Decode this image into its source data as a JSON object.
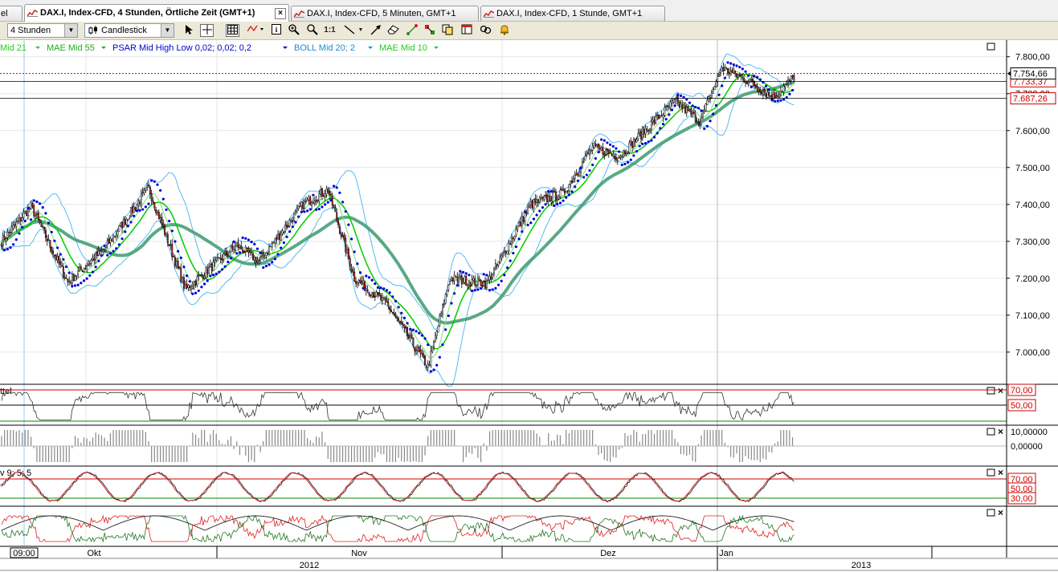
{
  "tabs": [
    {
      "label": "el",
      "active": false
    },
    {
      "label": "DAX.I, Index-CFD, 4 Stunden, Örtliche Zeit (GMT+1)",
      "active": true
    },
    {
      "label": "DAX.I, Index-CFD, 5 Minuten, GMT+1",
      "active": false
    },
    {
      "label": "DAX.I, Index-CFD, 1 Stunde, GMT+1",
      "active": false
    }
  ],
  "toolbar": {
    "interval": "4 Stunden",
    "chart_type": "Candlestick",
    "tools": [
      "cursor-arrow-icon",
      "crosshair-icon",
      "grid-icon",
      "indicator-icon",
      "info-icon",
      "zoom-pan-icon",
      "zoom-icon",
      "zoom-1to1-label",
      "line-tool-icon",
      "arrow-tool-icon",
      "eraser-icon",
      "fibonacci-icon",
      "pattern-icon",
      "copy-icon",
      "link-icon",
      "alarm-icon"
    ],
    "zoom_1to1": "1:1"
  },
  "indicators_legend": [
    {
      "text": "Mid  21",
      "color": "#22cc22"
    },
    {
      "text": "MAE Mid  55",
      "color": "#22aa22"
    },
    {
      "text": "PSAR  Mid High Low  0,02; 0,02; 0,2",
      "color": "#0000cc"
    },
    {
      "text": "BOLL Mid  20; 2",
      "color": "#2288cc"
    },
    {
      "text": "MAE Mid  10",
      "color": "#22cc22"
    }
  ],
  "price_labels": {
    "last": "7.754,66",
    "level2": "7.733,37",
    "level3": "7.687,26"
  },
  "sub_panels": [
    {
      "name": "rsi",
      "label": "ttel",
      "levels": [
        "70,00",
        "50,00"
      ]
    },
    {
      "name": "macd-histogram",
      "label": "",
      "levels": [
        "10,00000",
        "0,00000"
      ]
    },
    {
      "name": "stochastic",
      "label": "v  9; 5; 5",
      "levels": [
        "70,00",
        "50,00",
        "30,00"
      ]
    },
    {
      "name": "dmi",
      "label": "",
      "levels": []
    }
  ],
  "time_axis": {
    "top_labels": [
      "09:00",
      "Okt",
      "Nov",
      "Dez",
      "Jan"
    ],
    "bottom_labels": [
      "2012",
      "2013"
    ]
  },
  "colors": {
    "candle_up": "#ffffff",
    "candle_down": "#cc2222",
    "psar": "#0000dd",
    "boll": "#55bbee",
    "mae10": "#00cc00",
    "mae55": "#3c9a6e",
    "price_line": "#cc0000"
  },
  "chart_data": {
    "type": "candlestick",
    "title": "DAX.I, Index-CFD, 4 Stunden, Örtliche Zeit (GMT+1)",
    "y_ticks": [
      "7.000,00",
      "7.100,00",
      "7.200,00",
      "7.300,00",
      "7.400,00",
      "7.500,00",
      "7.600,00",
      "7.700,00",
      "7.800,00"
    ],
    "y_tick_values": [
      7000,
      7100,
      7200,
      7300,
      7400,
      7500,
      7600,
      7700,
      7800
    ],
    "ylim": [
      6915,
      7845
    ],
    "price_levels": [
      7754.66,
      7733.37,
      7687.26
    ],
    "months": [
      "Okt",
      "Nov",
      "Dez",
      "Jan"
    ],
    "close_anchors": [
      [
        0,
        7300
      ],
      [
        20,
        7395
      ],
      [
        45,
        7190
      ],
      [
        70,
        7280
      ],
      [
        100,
        7445
      ],
      [
        125,
        7170
      ],
      [
        160,
        7290
      ],
      [
        175,
        7245
      ],
      [
        205,
        7400
      ],
      [
        222,
        7440
      ],
      [
        240,
        7200
      ],
      [
        262,
        7130
      ],
      [
        290,
        6960
      ],
      [
        305,
        7200
      ],
      [
        330,
        7185
      ],
      [
        360,
        7400
      ],
      [
        382,
        7430
      ],
      [
        402,
        7555
      ],
      [
        420,
        7530
      ],
      [
        440,
        7610
      ],
      [
        458,
        7680
      ],
      [
        475,
        7625
      ],
      [
        490,
        7770
      ],
      [
        510,
        7730
      ],
      [
        525,
        7690
      ],
      [
        540,
        7750
      ]
    ],
    "candle_count": 540,
    "window_visible": 100
  }
}
